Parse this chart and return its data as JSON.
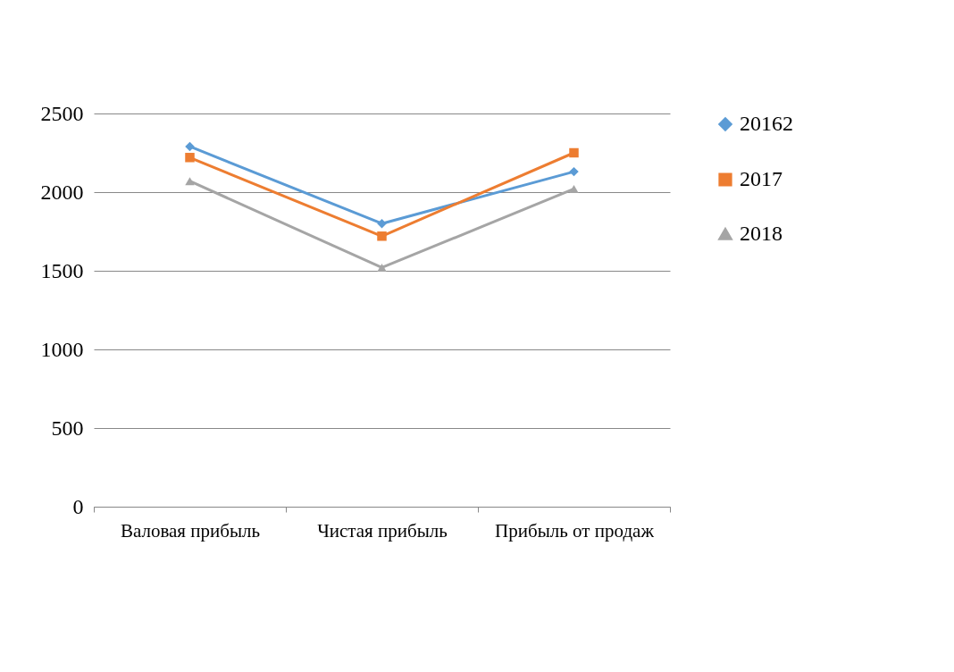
{
  "chart_data": {
    "type": "line",
    "categories": [
      "Валовая прибыль",
      "Чистая прибыль",
      "Прибыль от продаж"
    ],
    "series": [
      {
        "name": "20162",
        "color": "#5b9bd5",
        "marker": "diamond",
        "values": [
          2290,
          1800,
          2130
        ]
      },
      {
        "name": "2017",
        "color": "#ed7d31",
        "marker": "square",
        "values": [
          2220,
          1720,
          2250
        ]
      },
      {
        "name": "2018",
        "color": "#a5a5a5",
        "marker": "triangle",
        "values": [
          2070,
          1520,
          2020
        ]
      }
    ],
    "ylim": [
      0,
      2500
    ],
    "yticks": [
      0,
      500,
      1000,
      1500,
      2000,
      2500
    ],
    "grid": "y",
    "legend": "right"
  }
}
